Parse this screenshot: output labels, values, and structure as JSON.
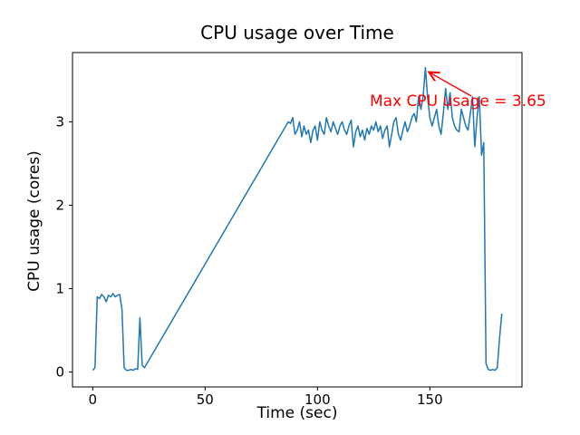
{
  "chart_data": {
    "type": "line",
    "title": "CPU usage over Time",
    "xlabel": "Time (sec)",
    "ylabel": "CPU usage (cores)",
    "xlim": [
      -9,
      191
    ],
    "ylim": [
      -0.18,
      3.83
    ],
    "x_ticks": [
      0,
      50,
      100,
      150
    ],
    "y_ticks": [
      0,
      1,
      2,
      3
    ],
    "grid": false,
    "legend": false,
    "line_color": "#1f77b4",
    "annotation": {
      "text": "Max CPU usage = 3.65",
      "color": "#ff0000",
      "point": [
        148,
        3.65
      ]
    },
    "series": [
      {
        "name": "cpu_usage",
        "points": [
          [
            0,
            0.02
          ],
          [
            1,
            0.05
          ],
          [
            2,
            0.9
          ],
          [
            3,
            0.88
          ],
          [
            4,
            0.93
          ],
          [
            5,
            0.9
          ],
          [
            6,
            0.84
          ],
          [
            7,
            0.92
          ],
          [
            8,
            0.9
          ],
          [
            9,
            0.94
          ],
          [
            10,
            0.9
          ],
          [
            11,
            0.92
          ],
          [
            12,
            0.93
          ],
          [
            13,
            0.75
          ],
          [
            14,
            0.05
          ],
          [
            15,
            0.02
          ],
          [
            16,
            0.02
          ],
          [
            17,
            0.03
          ],
          [
            18,
            0.02
          ],
          [
            19,
            0.04
          ],
          [
            20,
            0.03
          ],
          [
            21,
            0.65
          ],
          [
            22,
            0.08
          ],
          [
            23,
            0.05
          ],
          [
            87,
            3.0
          ],
          [
            88,
            2.98
          ],
          [
            89,
            3.05
          ],
          [
            90,
            2.85
          ],
          [
            91,
            2.9
          ],
          [
            92,
            3.0
          ],
          [
            93,
            2.82
          ],
          [
            94,
            2.95
          ],
          [
            95,
            2.85
          ],
          [
            96,
            2.9
          ],
          [
            97,
            2.75
          ],
          [
            98,
            2.9
          ],
          [
            99,
            2.95
          ],
          [
            100,
            2.78
          ],
          [
            101,
            3.0
          ],
          [
            102,
            2.9
          ],
          [
            103,
            2.85
          ],
          [
            104,
            3.05
          ],
          [
            105,
            2.95
          ],
          [
            106,
            2.88
          ],
          [
            107,
            3.0
          ],
          [
            108,
            2.92
          ],
          [
            109,
            2.85
          ],
          [
            110,
            2.95
          ],
          [
            111,
            3.0
          ],
          [
            112,
            2.9
          ],
          [
            113,
            2.85
          ],
          [
            114,
            2.95
          ],
          [
            115,
            3.02
          ],
          [
            116,
            2.7
          ],
          [
            117,
            2.88
          ],
          [
            118,
            2.95
          ],
          [
            119,
            2.82
          ],
          [
            120,
            2.9
          ],
          [
            121,
            2.78
          ],
          [
            122,
            2.92
          ],
          [
            123,
            2.85
          ],
          [
            124,
            2.95
          ],
          [
            125,
            2.9
          ],
          [
            126,
            3.0
          ],
          [
            127,
            2.88
          ],
          [
            128,
            2.95
          ],
          [
            129,
            2.8
          ],
          [
            130,
            2.9
          ],
          [
            131,
            2.95
          ],
          [
            132,
            2.7
          ],
          [
            133,
            2.85
          ],
          [
            134,
            3.0
          ],
          [
            135,
            3.05
          ],
          [
            136,
            2.85
          ],
          [
            137,
            2.78
          ],
          [
            138,
            2.9
          ],
          [
            139,
            3.0
          ],
          [
            140,
            2.88
          ],
          [
            141,
            2.95
          ],
          [
            142,
            3.05
          ],
          [
            143,
            3.1
          ],
          [
            144,
            3.0
          ],
          [
            145,
            3.3
          ],
          [
            146,
            3.15
          ],
          [
            147,
            3.3
          ],
          [
            148,
            3.65
          ],
          [
            149,
            3.3
          ],
          [
            150,
            3.05
          ],
          [
            151,
            2.95
          ],
          [
            152,
            3.05
          ],
          [
            153,
            3.15
          ],
          [
            154,
            2.95
          ],
          [
            155,
            2.85
          ],
          [
            156,
            3.1
          ],
          [
            157,
            3.4
          ],
          [
            158,
            3.15
          ],
          [
            159,
            3.35
          ],
          [
            160,
            3.05
          ],
          [
            161,
            2.95
          ],
          [
            162,
            2.9
          ],
          [
            163,
            2.88
          ],
          [
            164,
            3.15
          ],
          [
            165,
            3.05
          ],
          [
            166,
            2.95
          ],
          [
            167,
            2.9
          ],
          [
            168,
            3.1
          ],
          [
            169,
            3.3
          ],
          [
            170,
            2.7
          ],
          [
            171,
            3.05
          ],
          [
            172,
            3.3
          ],
          [
            173,
            2.6
          ],
          [
            174,
            2.75
          ],
          [
            175,
            0.1
          ],
          [
            176,
            0.03
          ],
          [
            177,
            0.02
          ],
          [
            178,
            0.03
          ],
          [
            179,
            0.02
          ],
          [
            180,
            0.05
          ],
          [
            181,
            0.4
          ],
          [
            182,
            0.7
          ]
        ]
      }
    ]
  }
}
